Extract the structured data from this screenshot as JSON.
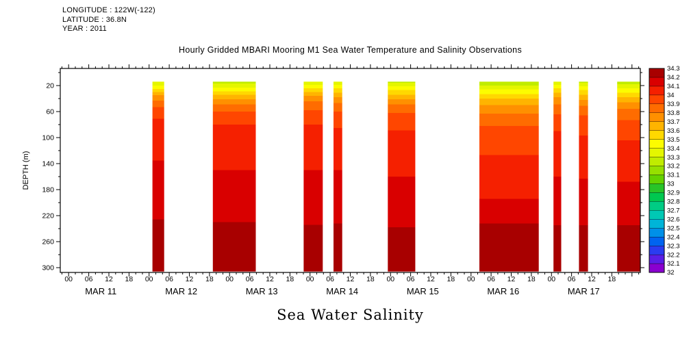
{
  "header": {
    "longitude": "LONGITUDE : 122W(-122)",
    "latitude": "LATITUDE : 36.8N",
    "year": "YEAR : 2011"
  },
  "title": "Hourly Gridded MBARI Mooring M1 Sea Water Temperature and Salinity Observations",
  "footer_label": "Sea Water Salinity",
  "chart_data": {
    "type": "heatmap",
    "title": "Hourly Gridded MBARI Mooring M1 Sea Water Temperature and Salinity Observations",
    "variable": "Sea Water Salinity",
    "ylabel": "DEPTH (m)",
    "y_ticks": [
      20,
      60,
      100,
      140,
      180,
      220,
      260,
      300
    ],
    "y_minor_step_m": 20,
    "depth_range_m": [
      14,
      306
    ],
    "time_range_hours": [
      -2.5,
      170.5
    ],
    "hour_tick_labels": [
      "00",
      "06",
      "12",
      "18"
    ],
    "hour_major_step": 6,
    "hour_minor_step": 2,
    "last_labeled_hour": 162,
    "day_labels": [
      "MAR 11",
      "MAR 12",
      "MAR 13",
      "MAR 14",
      "MAR 15",
      "MAR 16",
      "MAR 17"
    ],
    "grid": false,
    "legend_position": "right-colorbar",
    "colorbar": {
      "min": 32,
      "max": 34.3,
      "step": 0.1,
      "tick_labels_top_to_bottom": [
        "34.3",
        "34.2",
        "34.1",
        "34",
        "33.9",
        "33.8",
        "33.7",
        "33.6",
        "33.5",
        "33.4",
        "33.3",
        "33.2",
        "33.1",
        "33",
        "32.9",
        "32.8",
        "32.7",
        "32.6",
        "32.5",
        "32.4",
        "32.3",
        "32.2",
        "32.1",
        "32"
      ],
      "colors_low_to_high": [
        "#8a00d0",
        "#5a1ee6",
        "#2a3cf0",
        "#0064f0",
        "#0090e8",
        "#00b4d8",
        "#00c8b4",
        "#00cc84",
        "#00c850",
        "#28c428",
        "#64d200",
        "#96e000",
        "#c0ec00",
        "#e4f600",
        "#fcfc00",
        "#ffd800",
        "#ffb400",
        "#ff9000",
        "#ff6c00",
        "#ff4600",
        "#f52000",
        "#d90000",
        "#a80000"
      ]
    },
    "bands": [
      {
        "start_hour": 25.0,
        "end_hour": 28.5,
        "profile": [
          [
            14,
            33.3
          ],
          [
            22,
            33.45
          ],
          [
            30,
            33.62
          ],
          [
            40,
            33.78
          ],
          [
            55,
            33.92
          ],
          [
            75,
            34.02
          ],
          [
            110,
            34.08
          ],
          [
            160,
            34.12
          ],
          [
            215,
            34.15
          ],
          [
            230,
            34.22
          ],
          [
            306,
            34.26
          ]
        ]
      },
      {
        "start_hour": 43.0,
        "end_hour": 55.8,
        "profile": [
          [
            14,
            33.25
          ],
          [
            24,
            33.42
          ],
          [
            34,
            33.6
          ],
          [
            46,
            33.78
          ],
          [
            60,
            33.9
          ],
          [
            80,
            34.0
          ],
          [
            120,
            34.07
          ],
          [
            170,
            34.12
          ],
          [
            220,
            34.16
          ],
          [
            235,
            34.22
          ],
          [
            306,
            34.27
          ]
        ]
      },
      {
        "start_hour": 70.1,
        "end_hour": 75.8,
        "profile": [
          [
            14,
            33.3
          ],
          [
            22,
            33.48
          ],
          [
            32,
            33.65
          ],
          [
            44,
            33.8
          ],
          [
            60,
            33.92
          ],
          [
            85,
            34.02
          ],
          [
            130,
            34.08
          ],
          [
            180,
            34.13
          ],
          [
            225,
            34.16
          ],
          [
            240,
            34.23
          ],
          [
            306,
            34.26
          ]
        ]
      },
      {
        "start_hour": 79.0,
        "end_hour": 81.6,
        "profile": [
          [
            14,
            33.32
          ],
          [
            24,
            33.5
          ],
          [
            36,
            33.68
          ],
          [
            50,
            33.84
          ],
          [
            70,
            33.96
          ],
          [
            100,
            34.04
          ],
          [
            150,
            34.1
          ],
          [
            210,
            34.14
          ],
          [
            235,
            34.21
          ],
          [
            306,
            34.25
          ]
        ]
      },
      {
        "start_hour": 95.2,
        "end_hour": 103.4,
        "profile": [
          [
            14,
            33.28
          ],
          [
            24,
            33.46
          ],
          [
            36,
            33.64
          ],
          [
            50,
            33.82
          ],
          [
            68,
            33.94
          ],
          [
            95,
            34.02
          ],
          [
            140,
            34.08
          ],
          [
            190,
            34.13
          ],
          [
            228,
            34.16
          ],
          [
            242,
            34.22
          ],
          [
            306,
            34.26
          ]
        ]
      },
      {
        "start_hour": 122.5,
        "end_hour": 140.2,
        "profile": [
          [
            14,
            33.22
          ],
          [
            26,
            33.4
          ],
          [
            40,
            33.6
          ],
          [
            56,
            33.76
          ],
          [
            75,
            33.88
          ],
          [
            100,
            33.96
          ],
          [
            140,
            34.02
          ],
          [
            180,
            34.08
          ],
          [
            215,
            34.13
          ],
          [
            232,
            34.2
          ],
          [
            306,
            34.26
          ]
        ]
      },
      {
        "start_hour": 144.6,
        "end_hour": 146.9,
        "profile": [
          [
            14,
            33.3
          ],
          [
            24,
            33.5
          ],
          [
            38,
            33.7
          ],
          [
            55,
            33.86
          ],
          [
            80,
            33.98
          ],
          [
            120,
            34.06
          ],
          [
            180,
            34.12
          ],
          [
            225,
            34.16
          ],
          [
            240,
            34.22
          ],
          [
            306,
            34.25
          ]
        ]
      },
      {
        "start_hour": 152.2,
        "end_hour": 154.9,
        "profile": [
          [
            14,
            33.28
          ],
          [
            24,
            33.46
          ],
          [
            38,
            33.66
          ],
          [
            54,
            33.84
          ],
          [
            78,
            33.96
          ],
          [
            115,
            34.04
          ],
          [
            170,
            34.11
          ],
          [
            220,
            34.15
          ],
          [
            238,
            34.21
          ],
          [
            306,
            34.25
          ]
        ]
      },
      {
        "start_hour": 163.6,
        "end_hour": 170.5,
        "profile": [
          [
            14,
            33.25
          ],
          [
            26,
            33.44
          ],
          [
            40,
            33.64
          ],
          [
            58,
            33.82
          ],
          [
            82,
            33.95
          ],
          [
            120,
            34.04
          ],
          [
            175,
            34.11
          ],
          [
            222,
            34.15
          ],
          [
            240,
            34.22
          ],
          [
            306,
            34.26
          ]
        ]
      }
    ]
  }
}
